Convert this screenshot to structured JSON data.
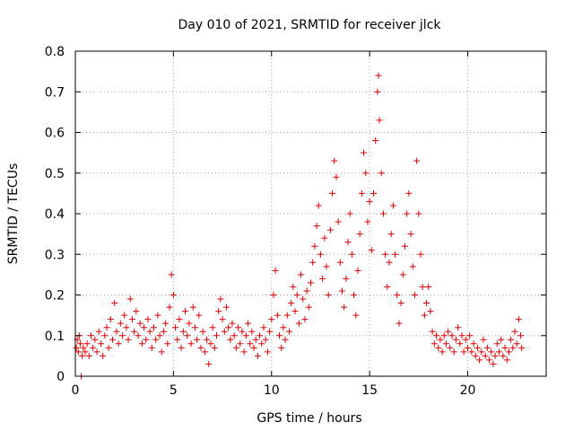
{
  "chart_data": {
    "type": "scatter",
    "title": "Day 010 of 2021, SRMTID for receiver jlck",
    "xlabel": "GPS time / hours",
    "ylabel": "SRMTID / TECUs",
    "xlim": [
      0,
      24
    ],
    "ylim": [
      0,
      0.8
    ],
    "grid": true,
    "marker": "plus",
    "color": "#e00000",
    "xticks": [
      0,
      5,
      10,
      15,
      20
    ],
    "xtick_labels": [
      "0",
      "5",
      "10",
      "15",
      "20"
    ],
    "yticks": [
      0,
      0.1,
      0.2,
      0.3,
      0.4,
      0.5,
      0.6,
      0.7,
      0.8
    ],
    "ytick_labels": [
      "0",
      "0.1",
      "0.2",
      "0.3",
      "0.4",
      "0.5",
      "0.6",
      "0.7",
      "0.8"
    ],
    "series": [
      {
        "name": "SRMTID",
        "points": [
          [
            0.05,
            0.07
          ],
          [
            0.1,
            0.09
          ],
          [
            0.15,
            0.06
          ],
          [
            0.2,
            0.1
          ],
          [
            0.25,
            0.08
          ],
          [
            0.3,
            0.0
          ],
          [
            0.35,
            0.05
          ],
          [
            0.4,
            0.07
          ],
          [
            0.5,
            0.06
          ],
          [
            0.6,
            0.08
          ],
          [
            0.7,
            0.05
          ],
          [
            0.8,
            0.1
          ],
          [
            0.9,
            0.07
          ],
          [
            1.0,
            0.09
          ],
          [
            1.1,
            0.06
          ],
          [
            1.2,
            0.11
          ],
          [
            1.3,
            0.08
          ],
          [
            1.4,
            0.05
          ],
          [
            1.5,
            0.1
          ],
          [
            1.6,
            0.12
          ],
          [
            1.7,
            0.07
          ],
          [
            1.8,
            0.14
          ],
          [
            1.9,
            0.09
          ],
          [
            2.0,
            0.18
          ],
          [
            2.1,
            0.11
          ],
          [
            2.2,
            0.08
          ],
          [
            2.3,
            0.13
          ],
          [
            2.4,
            0.1
          ],
          [
            2.5,
            0.15
          ],
          [
            2.6,
            0.12
          ],
          [
            2.7,
            0.09
          ],
          [
            2.8,
            0.19
          ],
          [
            2.9,
            0.14
          ],
          [
            3.0,
            0.11
          ],
          [
            3.1,
            0.16
          ],
          [
            3.2,
            0.1
          ],
          [
            3.3,
            0.13
          ],
          [
            3.4,
            0.08
          ],
          [
            3.5,
            0.12
          ],
          [
            3.6,
            0.09
          ],
          [
            3.7,
            0.14
          ],
          [
            3.8,
            0.11
          ],
          [
            3.9,
            0.07
          ],
          [
            4.0,
            0.12
          ],
          [
            4.1,
            0.09
          ],
          [
            4.2,
            0.15
          ],
          [
            4.3,
            0.1
          ],
          [
            4.4,
            0.06
          ],
          [
            4.5,
            0.11
          ],
          [
            4.6,
            0.13
          ],
          [
            4.7,
            0.08
          ],
          [
            4.8,
            0.17
          ],
          [
            4.9,
            0.25
          ],
          [
            5.0,
            0.2
          ],
          [
            5.1,
            0.12
          ],
          [
            5.2,
            0.09
          ],
          [
            5.3,
            0.14
          ],
          [
            5.4,
            0.07
          ],
          [
            5.5,
            0.11
          ],
          [
            5.6,
            0.16
          ],
          [
            5.7,
            0.1
          ],
          [
            5.8,
            0.13
          ],
          [
            5.9,
            0.08
          ],
          [
            6.0,
            0.17
          ],
          [
            6.1,
            0.12
          ],
          [
            6.2,
            0.09
          ],
          [
            6.3,
            0.15
          ],
          [
            6.4,
            0.07
          ],
          [
            6.5,
            0.11
          ],
          [
            6.6,
            0.06
          ],
          [
            6.7,
            0.09
          ],
          [
            6.8,
            0.03
          ],
          [
            6.9,
            0.08
          ],
          [
            7.0,
            0.12
          ],
          [
            7.1,
            0.07
          ],
          [
            7.2,
            0.1
          ],
          [
            7.3,
            0.16
          ],
          [
            7.4,
            0.19
          ],
          [
            7.5,
            0.14
          ],
          [
            7.6,
            0.11
          ],
          [
            7.7,
            0.17
          ],
          [
            7.8,
            0.12
          ],
          [
            7.9,
            0.09
          ],
          [
            8.0,
            0.13
          ],
          [
            8.1,
            0.1
          ],
          [
            8.2,
            0.07
          ],
          [
            8.3,
            0.12
          ],
          [
            8.4,
            0.08
          ],
          [
            8.5,
            0.11
          ],
          [
            8.6,
            0.06
          ],
          [
            8.7,
            0.1
          ],
          [
            8.8,
            0.13
          ],
          [
            8.9,
            0.08
          ],
          [
            9.0,
            0.11
          ],
          [
            9.1,
            0.07
          ],
          [
            9.2,
            0.09
          ],
          [
            9.3,
            0.05
          ],
          [
            9.4,
            0.1
          ],
          [
            9.5,
            0.08
          ],
          [
            9.6,
            0.12
          ],
          [
            9.7,
            0.09
          ],
          [
            9.8,
            0.06
          ],
          [
            9.9,
            0.11
          ],
          [
            10.0,
            0.14
          ],
          [
            10.1,
            0.2
          ],
          [
            10.2,
            0.26
          ],
          [
            10.3,
            0.15
          ],
          [
            10.4,
            0.1
          ],
          [
            10.5,
            0.07
          ],
          [
            10.6,
            0.12
          ],
          [
            10.7,
            0.09
          ],
          [
            10.8,
            0.15
          ],
          [
            10.9,
            0.11
          ],
          [
            11.0,
            0.18
          ],
          [
            11.1,
            0.22
          ],
          [
            11.2,
            0.16
          ],
          [
            11.3,
            0.2
          ],
          [
            11.4,
            0.13
          ],
          [
            11.5,
            0.25
          ],
          [
            11.6,
            0.19
          ],
          [
            11.7,
            0.14
          ],
          [
            11.8,
            0.21
          ],
          [
            11.9,
            0.17
          ],
          [
            12.0,
            0.23
          ],
          [
            12.1,
            0.28
          ],
          [
            12.2,
            0.32
          ],
          [
            12.3,
            0.37
          ],
          [
            12.4,
            0.42
          ],
          [
            12.5,
            0.3
          ],
          [
            12.6,
            0.24
          ],
          [
            12.7,
            0.34
          ],
          [
            12.8,
            0.27
          ],
          [
            12.9,
            0.2
          ],
          [
            13.0,
            0.36
          ],
          [
            13.1,
            0.45
          ],
          [
            13.2,
            0.53
          ],
          [
            13.3,
            0.49
          ],
          [
            13.4,
            0.38
          ],
          [
            13.5,
            0.28
          ],
          [
            13.6,
            0.21
          ],
          [
            13.7,
            0.17
          ],
          [
            13.8,
            0.24
          ],
          [
            13.9,
            0.33
          ],
          [
            14.0,
            0.4
          ],
          [
            14.1,
            0.3
          ],
          [
            14.2,
            0.2
          ],
          [
            14.3,
            0.15
          ],
          [
            14.4,
            0.26
          ],
          [
            14.5,
            0.35
          ],
          [
            14.6,
            0.45
          ],
          [
            14.7,
            0.55
          ],
          [
            14.8,
            0.5
          ],
          [
            14.9,
            0.38
          ],
          [
            15.0,
            0.43
          ],
          [
            15.1,
            0.31
          ],
          [
            15.2,
            0.45
          ],
          [
            15.3,
            0.58
          ],
          [
            15.4,
            0.7
          ],
          [
            15.45,
            0.74
          ],
          [
            15.5,
            0.63
          ],
          [
            15.6,
            0.5
          ],
          [
            15.7,
            0.4
          ],
          [
            15.8,
            0.3
          ],
          [
            15.9,
            0.22
          ],
          [
            16.0,
            0.28
          ],
          [
            16.1,
            0.35
          ],
          [
            16.2,
            0.42
          ],
          [
            16.3,
            0.3
          ],
          [
            16.4,
            0.2
          ],
          [
            16.5,
            0.13
          ],
          [
            16.6,
            0.18
          ],
          [
            16.7,
            0.25
          ],
          [
            16.8,
            0.32
          ],
          [
            16.9,
            0.4
          ],
          [
            17.0,
            0.45
          ],
          [
            17.1,
            0.35
          ],
          [
            17.2,
            0.27
          ],
          [
            17.3,
            0.2
          ],
          [
            17.4,
            0.53
          ],
          [
            17.5,
            0.4
          ],
          [
            17.6,
            0.3
          ],
          [
            17.7,
            0.22
          ],
          [
            17.8,
            0.15
          ],
          [
            17.9,
            0.18
          ],
          [
            18.0,
            0.22
          ],
          [
            18.1,
            0.16
          ],
          [
            18.2,
            0.11
          ],
          [
            18.3,
            0.08
          ],
          [
            18.4,
            0.1
          ],
          [
            18.5,
            0.07
          ],
          [
            18.6,
            0.09
          ],
          [
            18.7,
            0.06
          ],
          [
            18.8,
            0.1
          ],
          [
            18.9,
            0.08
          ],
          [
            19.0,
            0.11
          ],
          [
            19.1,
            0.07
          ],
          [
            19.2,
            0.1
          ],
          [
            19.3,
            0.06
          ],
          [
            19.4,
            0.09
          ],
          [
            19.5,
            0.12
          ],
          [
            19.6,
            0.08
          ],
          [
            19.7,
            0.1
          ],
          [
            19.8,
            0.06
          ],
          [
            19.9,
            0.09
          ],
          [
            20.0,
            0.07
          ],
          [
            20.1,
            0.1
          ],
          [
            20.2,
            0.06
          ],
          [
            20.3,
            0.08
          ],
          [
            20.4,
            0.05
          ],
          [
            20.5,
            0.07
          ],
          [
            20.6,
            0.04
          ],
          [
            20.7,
            0.06
          ],
          [
            20.8,
            0.09
          ],
          [
            20.9,
            0.05
          ],
          [
            21.0,
            0.07
          ],
          [
            21.1,
            0.04
          ],
          [
            21.2,
            0.06
          ],
          [
            21.3,
            0.03
          ],
          [
            21.4,
            0.05
          ],
          [
            21.5,
            0.08
          ],
          [
            21.6,
            0.06
          ],
          [
            21.7,
            0.09
          ],
          [
            21.8,
            0.05
          ],
          [
            21.9,
            0.07
          ],
          [
            22.0,
            0.04
          ],
          [
            22.1,
            0.06
          ],
          [
            22.2,
            0.09
          ],
          [
            22.3,
            0.07
          ],
          [
            22.4,
            0.11
          ],
          [
            22.5,
            0.08
          ],
          [
            22.6,
            0.14
          ],
          [
            22.7,
            0.1
          ],
          [
            22.75,
            0.07
          ]
        ]
      }
    ]
  }
}
